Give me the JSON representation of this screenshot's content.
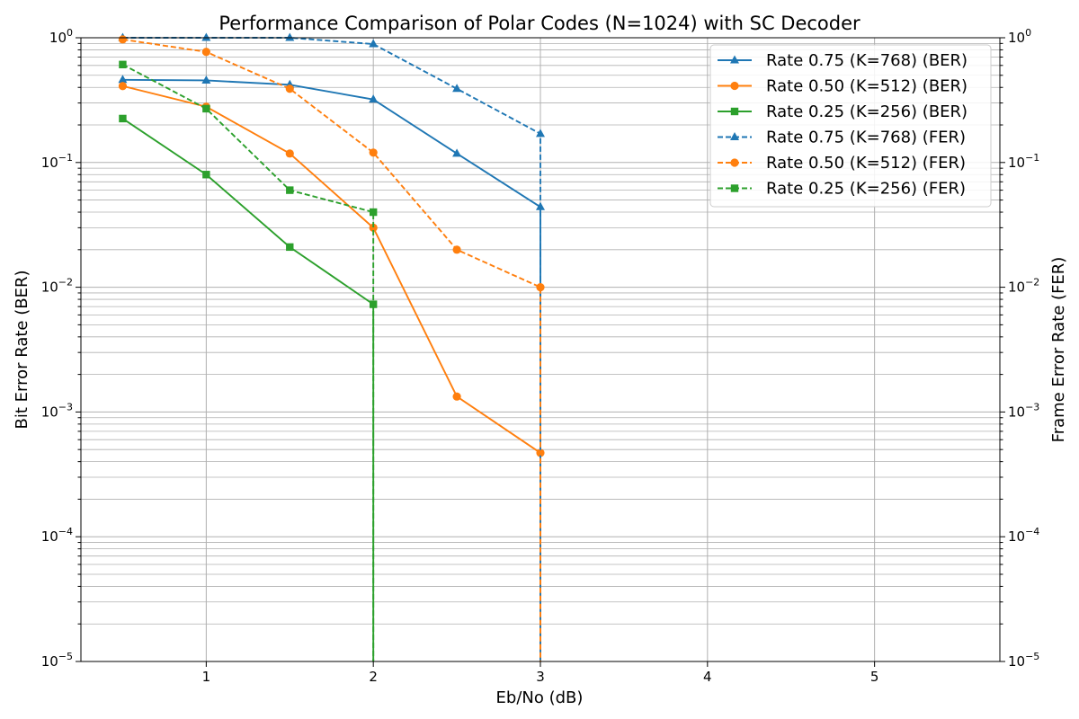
{
  "chart_data": {
    "type": "line",
    "title": "Performance Comparison of Polar Codes (N=1024) with SC Decoder",
    "xlabel": "Eb/No (dB)",
    "ylabel": "Bit Error Rate (BER)",
    "ylabel_right": "Frame Error Rate (FER)",
    "xlim": [
      0.25,
      5.75
    ],
    "ylim": [
      1e-05,
      1
    ],
    "yscale": "log",
    "xticks": [
      1,
      2,
      3,
      4,
      5
    ],
    "xtick_labels": [
      "1",
      "2",
      "3",
      "4",
      "5"
    ],
    "ytick_exponents": [
      -5,
      -4,
      -3,
      -2,
      -1,
      0
    ],
    "grid": true,
    "legend_position": "top-right",
    "series": [
      {
        "name": "Rate 0.75 (K=768) (BER)",
        "axis": "BER",
        "color": "#1f77b4",
        "linestyle": "solid",
        "marker": "triangle",
        "x": [
          0.5,
          1,
          1.5,
          2,
          2.5,
          3,
          3
        ],
        "y": [
          0.46,
          0.455,
          0.42,
          0.32,
          0.118,
          0.044,
          0
        ]
      },
      {
        "name": "Rate 0.50 (K=512) (BER)",
        "axis": "BER",
        "color": "#ff7f0e",
        "linestyle": "solid",
        "marker": "circle",
        "x": [
          0.5,
          1,
          1.5,
          2,
          2.5,
          3,
          3
        ],
        "y": [
          0.41,
          0.28,
          0.118,
          0.03,
          0.00133,
          0.00047,
          0
        ]
      },
      {
        "name": "Rate 0.25 (K=256) (BER)",
        "axis": "BER",
        "color": "#2ca02c",
        "linestyle": "solid",
        "marker": "square",
        "x": [
          0.5,
          1,
          1.5,
          2,
          2
        ],
        "y": [
          0.225,
          0.08,
          0.021,
          0.0073,
          0
        ]
      },
      {
        "name": "Rate 0.75 (K=768) (FER)",
        "axis": "FER",
        "color": "#1f77b4",
        "linestyle": "dashed",
        "marker": "triangle",
        "x": [
          0.5,
          1,
          1.5,
          2,
          2.5,
          3,
          3
        ],
        "y": [
          1.0,
          1.0,
          1.0,
          0.89,
          0.39,
          0.17,
          0
        ]
      },
      {
        "name": "Rate 0.50 (K=512) (FER)",
        "axis": "FER",
        "color": "#ff7f0e",
        "linestyle": "dashed",
        "marker": "circle",
        "x": [
          0.5,
          1,
          1.5,
          2,
          2.5,
          3,
          3
        ],
        "y": [
          0.97,
          0.77,
          0.39,
          0.12,
          0.02,
          0.01,
          0
        ]
      },
      {
        "name": "Rate 0.25 (K=256) (FER)",
        "axis": "FER",
        "color": "#2ca02c",
        "linestyle": "dashed",
        "marker": "square",
        "x": [
          0.5,
          1,
          1.5,
          2,
          2
        ],
        "y": [
          0.61,
          0.27,
          0.06,
          0.04,
          0
        ]
      }
    ]
  }
}
